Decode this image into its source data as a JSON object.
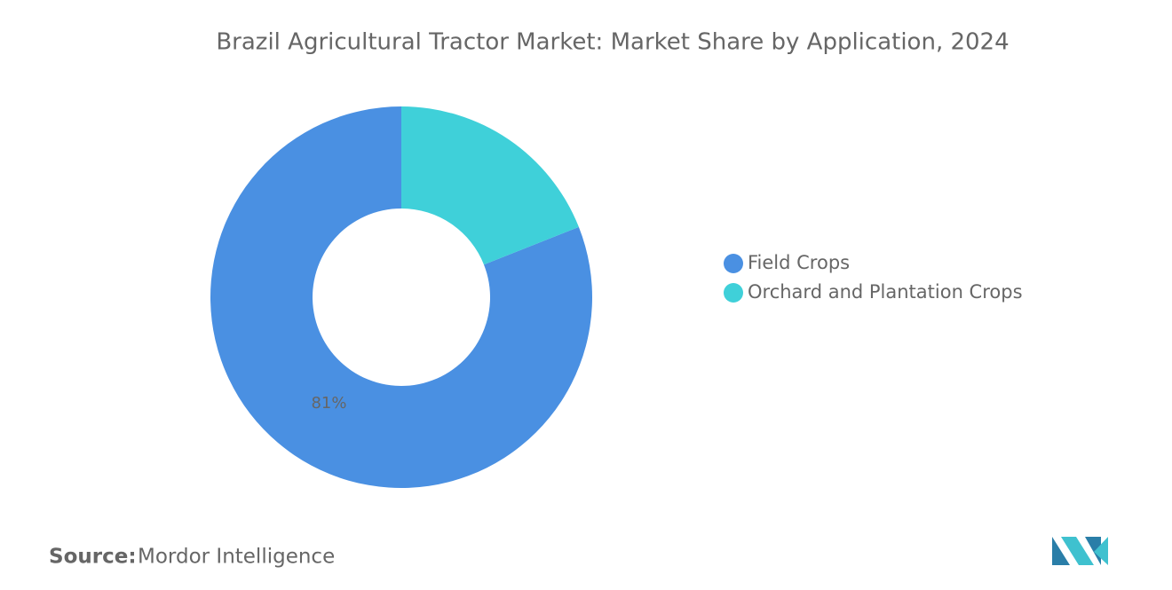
{
  "chart_data": {
    "type": "donut",
    "title": "Brazil Agricultural Tractor Market: Market Share by Application, 2024",
    "categories": [
      "Field Crops",
      "Orchard and Plantation Crops"
    ],
    "values": [
      81,
      19
    ],
    "value_labels": [
      "81%",
      null
    ],
    "colors": [
      "#4a90e2",
      "#3fd0d9"
    ],
    "legend": "right",
    "source_label": "Source:",
    "source": "Mordor Intelligence"
  }
}
